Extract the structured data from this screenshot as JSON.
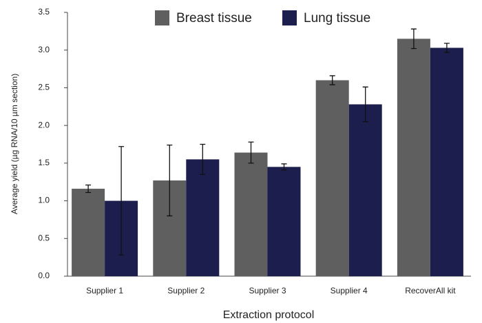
{
  "chart_data": {
    "type": "bar",
    "x_label": "Extraction protocol",
    "y_label": "Average yield (µg RNA/10 µm section)",
    "categories": [
      "Supplier 1",
      "Supplier 2",
      "Supplier 3",
      "Supplier 4",
      "RecoverAll kit"
    ],
    "series": [
      {
        "name": "Breast tissue",
        "color": "#5f5f5f",
        "values": [
          1.16,
          1.27,
          1.64,
          2.6,
          3.15
        ],
        "errors": [
          0.05,
          0.47,
          0.14,
          0.06,
          0.13
        ]
      },
      {
        "name": "Lung tissue",
        "color": "#1c1f4e",
        "values": [
          1.0,
          1.55,
          1.45,
          2.28,
          3.03
        ],
        "errors": [
          0.72,
          0.2,
          0.04,
          0.23,
          0.06
        ]
      }
    ],
    "ylim": [
      0,
      3.5
    ],
    "yticks": [
      {
        "value": 0,
        "label": "0.0"
      },
      {
        "value": 0.5,
        "label": "0.5"
      },
      {
        "value": 1,
        "label": "1.0"
      },
      {
        "value": 1.5,
        "label": "1.5"
      },
      {
        "value": 2,
        "label": "2.0"
      },
      {
        "value": 2.5,
        "label": "2.5"
      },
      {
        "value": 3,
        "label": "3.0"
      },
      {
        "value": 3.5,
        "label": "3.5"
      }
    ],
    "legend": "top"
  }
}
